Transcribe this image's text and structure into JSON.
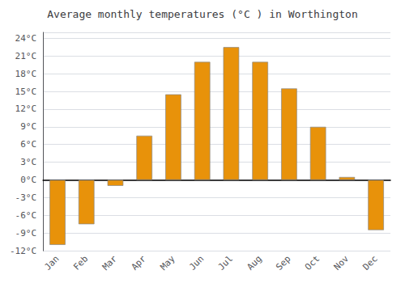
{
  "chart_data": {
    "type": "bar",
    "title": "Average monthly temperatures (°C ) in Worthington",
    "categories": [
      "Jan",
      "Feb",
      "Mar",
      "Apr",
      "May",
      "Jun",
      "Jul",
      "Aug",
      "Sep",
      "Oct",
      "Nov",
      "Dec"
    ],
    "values": [
      -11,
      -7.5,
      -1,
      7.5,
      14.5,
      20,
      22.5,
      20,
      15.5,
      9,
      0.5,
      -8.5
    ],
    "color": "#E8920A",
    "ylim": [
      -12,
      25
    ],
    "yticks": [
      {
        "value": -12,
        "label": "-12°C"
      },
      {
        "value": -9,
        "label": "-9°C"
      },
      {
        "value": -6,
        "label": "-6°C"
      },
      {
        "value": -3,
        "label": "-3°C"
      },
      {
        "value": 0,
        "label": "0°C"
      },
      {
        "value": 3,
        "label": "3°C"
      },
      {
        "value": 6,
        "label": "6°C"
      },
      {
        "value": 9,
        "label": "9°C"
      },
      {
        "value": 12,
        "label": "12°C"
      },
      {
        "value": 15,
        "label": "15°C"
      },
      {
        "value": 18,
        "label": "18°C"
      },
      {
        "value": 21,
        "label": "21°C"
      },
      {
        "value": 24,
        "label": "24°C"
      }
    ],
    "grid": true
  }
}
